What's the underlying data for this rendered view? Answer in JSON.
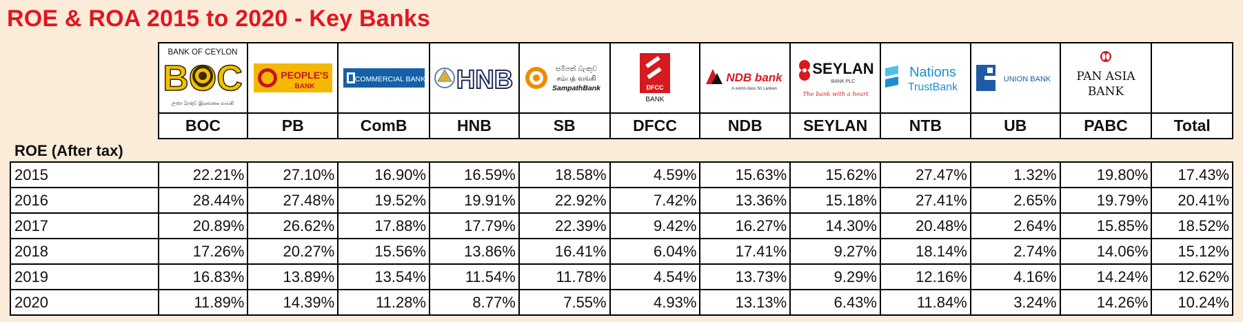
{
  "title": "ROE & ROA 2015 to 2020 - Key Banks",
  "section_label": "ROE (After tax)",
  "banks": [
    {
      "code": "BOC",
      "logo": {
        "top": "BANK OF CEYLON",
        "main": "BOC",
        "sub": "ලංකා බැංකුව இலங்கை வங்கி"
      }
    },
    {
      "code": "PB",
      "logo": {
        "main": "PEOPLE'S",
        "sub": "BANK"
      }
    },
    {
      "code": "ComB",
      "logo": {
        "main": "COMMERCIAL BANK"
      }
    },
    {
      "code": "HNB",
      "logo": {
        "main": "HNB"
      }
    },
    {
      "code": "SB",
      "logo": {
        "line1": "සම්පත් බැංකුව",
        "line2": "சம்பத் வங்கி",
        "line3": "SampathBank"
      }
    },
    {
      "code": "DFCC",
      "logo": {
        "main": "DFCC",
        "sub": "BANK"
      }
    },
    {
      "code": "NDB",
      "logo": {
        "main": "NDB bank",
        "sub": "A world-class Sri Lankan"
      }
    },
    {
      "code": "SEYLAN",
      "logo": {
        "main": "SEYLAN",
        "sub": "BANK PLC",
        "tag": "The bank with a heart"
      }
    },
    {
      "code": "NTB",
      "logo": {
        "main": "Nations",
        "sub": "TrustBank"
      }
    },
    {
      "code": "UB",
      "logo": {
        "main": "UNION BANK"
      }
    },
    {
      "code": "PABC",
      "logo": {
        "line1": "PAN ASIA",
        "line2": "BANK"
      }
    }
  ],
  "total_label": "Total",
  "rows": [
    {
      "year": "2015",
      "values": [
        "22.21%",
        "27.10%",
        "16.90%",
        "16.59%",
        "18.58%",
        "4.59%",
        "15.63%",
        "15.62%",
        "27.47%",
        "1.32%",
        "19.80%",
        "17.43%"
      ]
    },
    {
      "year": "2016",
      "values": [
        "28.44%",
        "27.48%",
        "19.52%",
        "19.91%",
        "22.92%",
        "7.42%",
        "13.36%",
        "15.18%",
        "27.41%",
        "2.65%",
        "19.79%",
        "20.41%"
      ]
    },
    {
      "year": "2017",
      "values": [
        "20.89%",
        "26.62%",
        "17.88%",
        "17.79%",
        "22.39%",
        "9.42%",
        "16.27%",
        "14.30%",
        "20.48%",
        "2.64%",
        "15.85%",
        "18.52%"
      ]
    },
    {
      "year": "2018",
      "values": [
        "17.26%",
        "20.27%",
        "15.56%",
        "13.86%",
        "16.41%",
        "6.04%",
        "17.41%",
        "9.27%",
        "18.14%",
        "2.74%",
        "14.06%",
        "15.12%"
      ]
    },
    {
      "year": "2019",
      "values": [
        "16.83%",
        "13.89%",
        "13.54%",
        "11.54%",
        "11.78%",
        "4.54%",
        "13.73%",
        "9.29%",
        "12.16%",
        "4.16%",
        "14.24%",
        "12.62%"
      ]
    },
    {
      "year": "2020",
      "values": [
        "11.89%",
        "14.39%",
        "11.28%",
        "8.77%",
        "7.55%",
        "4.93%",
        "13.13%",
        "6.43%",
        "11.84%",
        "3.24%",
        "14.26%",
        "10.24%"
      ]
    }
  ],
  "colors": {
    "title": "#e2161f",
    "background": "#fbebd9",
    "boc_gold": "#f2c200",
    "seylan_red": "#d71920",
    "ntb_blue": "#1b8fcf",
    "ub_blue": "#1f5aa6"
  }
}
